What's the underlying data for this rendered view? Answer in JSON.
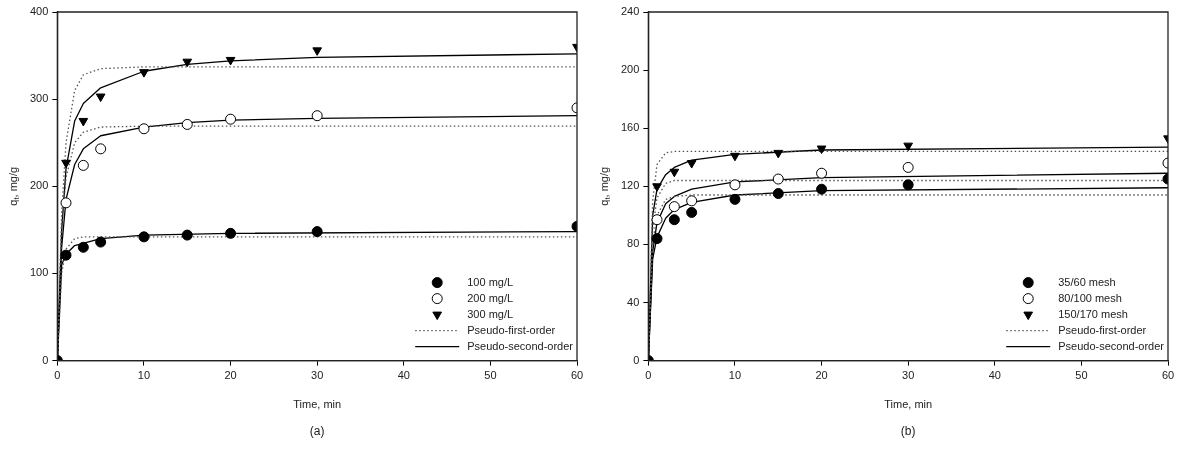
{
  "chart_data": [
    {
      "type": "scatter",
      "xlabel": "Time, min",
      "ylabel": "q$_{t}$, mg/g",
      "annotations": [
        "(a)"
      ],
      "x": [
        0,
        1,
        3,
        5,
        10,
        15,
        20,
        30,
        60
      ],
      "xlim": [
        0,
        60
      ],
      "xticks": [
        0,
        10,
        20,
        30,
        40,
        50,
        60
      ],
      "ylim": [
        0,
        400
      ],
      "yticks": [
        0,
        100,
        200,
        300,
        400
      ],
      "legend": "bottom right",
      "series": [
        {
          "name": "100 mg/L",
          "marker": "circle",
          "color": "#000000",
          "values": [
            0,
            121,
            130,
            136,
            142,
            144,
            146,
            148,
            154
          ]
        },
        {
          "name": "200 mg/L",
          "marker": "circle",
          "color": "#ffffff",
          "values": [
            null,
            181,
            224,
            243,
            266,
            271,
            277,
            281,
            290
          ]
        },
        {
          "name": "300 mg/L",
          "marker": "triangle",
          "color": "#000000",
          "values": [
            null,
            227,
            275,
            303,
            331,
            343,
            345,
            356,
            360
          ]
        },
        {
          "name": "Pseudo-first-order",
          "type": "line",
          "marker": "none",
          "line_style": "dotted",
          "color": "#555555",
          "x": [
            0,
            0.5,
            1,
            2,
            3,
            5,
            10,
            60
          ],
          "values": [
            0,
            100,
            128,
            140,
            142,
            142,
            142,
            142
          ]
        },
        {
          "type": "line",
          "marker": "none",
          "line_style": "dotted",
          "color": "#555555",
          "x": [
            0,
            0.5,
            1,
            2,
            3,
            5,
            10,
            60
          ],
          "values": [
            0,
            150,
            210,
            250,
            262,
            268,
            269,
            269
          ]
        },
        {
          "type": "line",
          "marker": "none",
          "line_style": "dotted",
          "color": "#555555",
          "x": [
            0,
            0.5,
            1,
            2,
            3,
            5,
            10,
            60
          ],
          "values": [
            0,
            170,
            250,
            310,
            328,
            335,
            337,
            337
          ]
        },
        {
          "name": "Pseudo-second-order",
          "type": "line",
          "marker": "none",
          "line_style": "solid",
          "color": "#000000",
          "x": [
            0,
            0.5,
            1,
            2,
            5,
            10,
            20,
            60
          ],
          "values": [
            0,
            110,
            122,
            132,
            140,
            144,
            146,
            148
          ]
        },
        {
          "type": "line",
          "marker": "none",
          "line_style": "solid",
          "color": "#000000",
          "x": [
            0,
            0.5,
            1,
            2,
            3,
            5,
            10,
            15,
            20,
            30,
            60
          ],
          "values": [
            0,
            130,
            185,
            225,
            243,
            258,
            268,
            273,
            276,
            278,
            281
          ]
        },
        {
          "type": "line",
          "marker": "none",
          "line_style": "solid",
          "color": "#000000",
          "x": [
            0,
            0.5,
            1,
            2,
            3,
            5,
            10,
            15,
            20,
            30,
            60
          ],
          "values": [
            0,
            150,
            220,
            275,
            295,
            313,
            332,
            340,
            344,
            348,
            352
          ]
        }
      ]
    },
    {
      "type": "scatter",
      "xlabel": "Time, min",
      "ylabel": "q$_{t}$, mg/g",
      "annotations": [
        "(b)"
      ],
      "x": [
        0,
        1,
        3,
        5,
        10,
        15,
        20,
        30,
        60
      ],
      "xlim": [
        0,
        60
      ],
      "xticks": [
        0,
        10,
        20,
        30,
        40,
        50,
        60
      ],
      "ylim": [
        0,
        240
      ],
      "yticks": [
        0,
        40,
        80,
        120,
        160,
        200,
        240
      ],
      "legend": "bottom right",
      "series": [
        {
          "name": "35/60 mesh",
          "marker": "circle",
          "color": "#000000",
          "values": [
            0,
            84,
            97,
            102,
            111,
            115,
            118,
            121,
            125
          ]
        },
        {
          "name": "80/100 mesh",
          "marker": "circle",
          "color": "#ffffff",
          "values": [
            null,
            97,
            106,
            110,
            121,
            125,
            129,
            133,
            136
          ]
        },
        {
          "name": "150/170 mesh",
          "marker": "triangle",
          "color": "#000000",
          "values": [
            null,
            120,
            130,
            136,
            141,
            143,
            146,
            148,
            153
          ]
        },
        {
          "name": "Pseudo-first-order",
          "type": "line",
          "marker": "none",
          "line_style": "dotted",
          "color": "#555555",
          "x": [
            0,
            0.5,
            1,
            2,
            3,
            5,
            60
          ],
          "values": [
            0,
            80,
            100,
            111,
            113,
            114,
            114
          ]
        },
        {
          "type": "line",
          "marker": "none",
          "line_style": "dotted",
          "color": "#555555",
          "x": [
            0,
            0.5,
            1,
            2,
            3,
            5,
            60
          ],
          "values": [
            0,
            90,
            112,
            122,
            124,
            124,
            124
          ]
        },
        {
          "type": "line",
          "marker": "none",
          "line_style": "dotted",
          "color": "#555555",
          "x": [
            0,
            0.5,
            1,
            2,
            3,
            60
          ],
          "values": [
            0,
            110,
            135,
            143,
            144,
            144
          ]
        },
        {
          "name": "Pseudo-second-order",
          "type": "line",
          "marker": "none",
          "line_style": "solid",
          "color": "#000000",
          "x": [
            0,
            0.5,
            1,
            2,
            3,
            5,
            10,
            20,
            60
          ],
          "values": [
            0,
            70,
            85,
            98,
            104,
            109,
            114,
            117,
            119
          ]
        },
        {
          "type": "line",
          "marker": "none",
          "line_style": "solid",
          "color": "#000000",
          "x": [
            0,
            0.5,
            1,
            2,
            3,
            5,
            10,
            20,
            60
          ],
          "values": [
            0,
            75,
            95,
            108,
            113,
            118,
            123,
            126,
            129
          ]
        },
        {
          "type": "line",
          "marker": "none",
          "line_style": "solid",
          "color": "#000000",
          "x": [
            0,
            0.5,
            1,
            2,
            3,
            5,
            10,
            20,
            60
          ],
          "values": [
            0,
            100,
            118,
            128,
            133,
            138,
            142,
            145,
            147
          ]
        }
      ]
    }
  ]
}
